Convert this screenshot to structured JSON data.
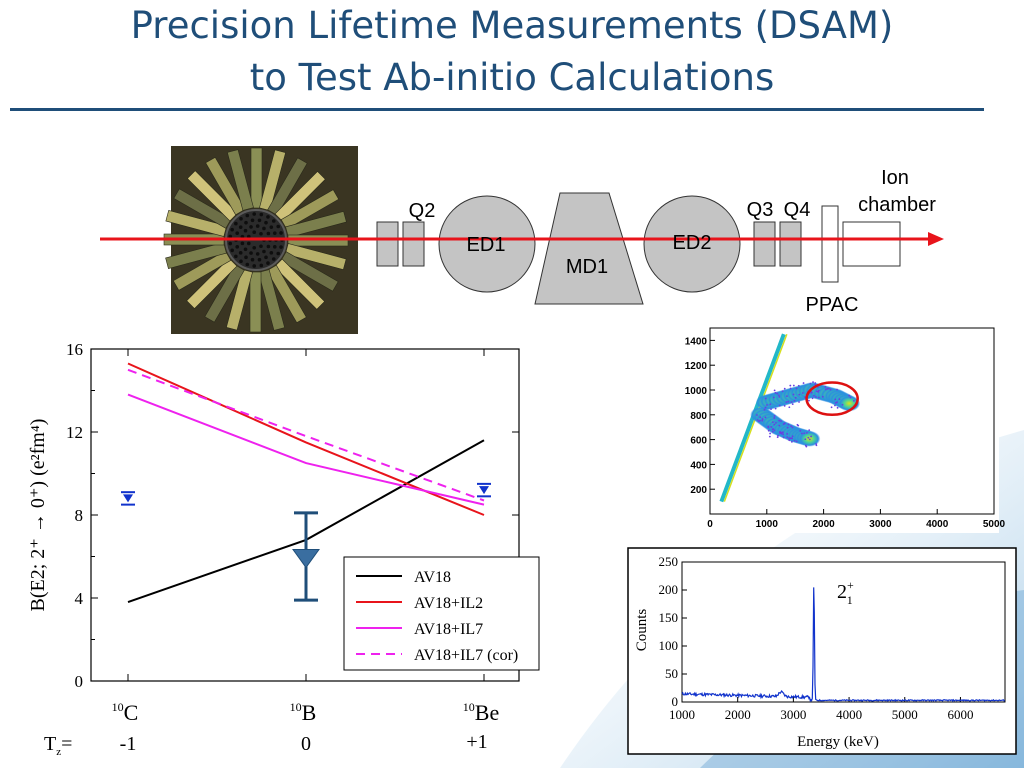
{
  "title": {
    "line1": "Precision Lifetime Measurements (DSAM)",
    "line2": "to Test Ab-initio Calculations"
  },
  "beamline": {
    "labels": {
      "q2": "Q2",
      "ed1": "ED1",
      "md1": "MD1",
      "ed2": "ED2",
      "q3": "Q3",
      "q4": "Q4",
      "ion1": "Ion",
      "ion2": "chamber",
      "ppac": "PPAC"
    },
    "colors": {
      "beam": "#e8141b",
      "magnet": "#c4c4c4"
    }
  },
  "chart_data": [
    {
      "type": "line",
      "xlabel": "",
      "ylabel": "B(E2; 2⁺ → 0⁺)  (e²fm⁴)",
      "ylim": [
        0,
        16
      ],
      "yticks": [
        0,
        4,
        8,
        12,
        16
      ],
      "categories": [
        {
          "mass": "10",
          "el": "C",
          "tz": "-1"
        },
        {
          "mass": "10",
          "el": "B",
          "tz": "0"
        },
        {
          "mass": "10",
          "el": "Be",
          "tz": "+1"
        }
      ],
      "tz_prefix": "T",
      "tz_sub": "z",
      "tz_eq": "=",
      "series": [
        {
          "name": "AV18",
          "color": "#000000",
          "dash": false,
          "x": [
            0,
            1,
            2
          ],
          "y": [
            3.8,
            6.8,
            11.6
          ]
        },
        {
          "name": "AV18+IL2",
          "color": "#e8141b",
          "dash": false,
          "x": [
            0,
            1,
            2
          ],
          "y": [
            15.3,
            11.5,
            8.0
          ]
        },
        {
          "name": "AV18+IL7",
          "color": "#ee22ee",
          "dash": false,
          "x": [
            0,
            1,
            1.5,
            2
          ],
          "y": [
            13.8,
            10.5,
            9.5,
            8.5
          ]
        },
        {
          "name": "AV18+IL7 (cor)",
          "color": "#ee22ee",
          "dash": true,
          "x": [
            0,
            1,
            2
          ],
          "y": [
            15.0,
            11.8,
            8.7
          ]
        }
      ],
      "experiment": [
        {
          "x": 0,
          "y": 8.8,
          "err": 0.3,
          "color": "#1133cc"
        },
        {
          "x": 1,
          "y": 6.0,
          "err": 2.1,
          "color": "#1f4e79"
        },
        {
          "x": 2,
          "y": 9.2,
          "err": 0.3,
          "color": "#1133cc"
        }
      ],
      "legend": "bottom-right"
    },
    {
      "type": "scatter",
      "xlim": [
        0,
        5000
      ],
      "ylim": [
        0,
        1500
      ],
      "xticks": [
        0,
        1000,
        2000,
        3000,
        4000,
        5000
      ],
      "yticks": [
        0,
        200,
        400,
        600,
        800,
        1000,
        1200,
        1400
      ],
      "loci": [
        {
          "x": [
            1000,
            1400,
            1800,
            2200,
            2500
          ],
          "y": [
            900,
            950,
            1000,
            950,
            880
          ]
        },
        {
          "x": [
            900,
            1200,
            1500,
            1800
          ],
          "y": [
            800,
            700,
            640,
            600
          ]
        }
      ],
      "band": {
        "x": [
          200,
          1300
        ],
        "y": [
          100,
          1450
        ]
      },
      "gate": {
        "cx": 2150,
        "cy": 930,
        "rx": 450,
        "ry": 130,
        "color": "#dd1111"
      }
    },
    {
      "type": "line",
      "xlabel": "Energy (keV)",
      "ylabel": "Counts",
      "xlim": [
        1000,
        6800
      ],
      "ylim": [
        0,
        250
      ],
      "xticks": [
        1000,
        2000,
        3000,
        4000,
        5000,
        6000
      ],
      "yticks": [
        0,
        50,
        100,
        150,
        200,
        250
      ],
      "peak": {
        "x": 3368,
        "y": 218
      },
      "peak_label": "2",
      "peak_label_sup": "+",
      "peak_label_sub": "1",
      "color": "#1133cc"
    }
  ]
}
